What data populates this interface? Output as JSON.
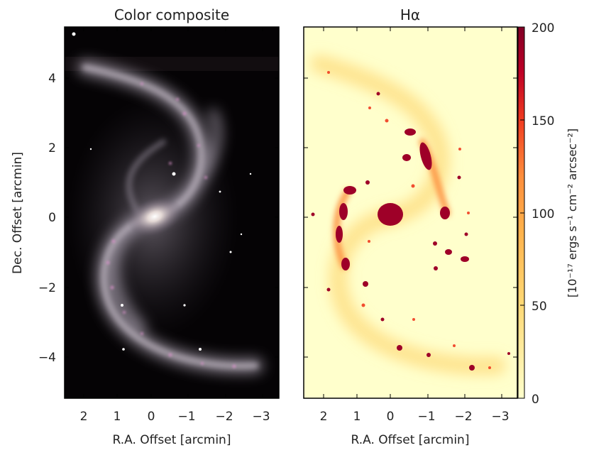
{
  "panels": {
    "left_title": "Color composite",
    "right_title": "Hα"
  },
  "axes": {
    "ylabel": "Dec. Offset [arcmin]",
    "xlabel": "R.A. Offset [arcmin]",
    "y_ticks": [
      "4",
      "2",
      "0",
      "−2",
      "−4"
    ],
    "x_ticks": [
      "2",
      "1",
      "0",
      "−1",
      "−2",
      "−3"
    ]
  },
  "colorbar": {
    "label": "[10⁻¹⁷ ergs s⁻¹ cm⁻² arcsec⁻²]",
    "ticks": [
      "200",
      "150",
      "100",
      "50",
      "0"
    ],
    "colors": [
      "#ffffcc",
      "#feb24c",
      "#f03b20",
      "#bd0026",
      "#800026"
    ]
  },
  "chart_data": {
    "type": "image",
    "panels": [
      "Color composite",
      "Hα"
    ],
    "x_range_arcmin": [
      2.5,
      -3.6
    ],
    "y_range_arcmin": [
      -5.2,
      5.4
    ],
    "colorbar_range": [
      0,
      200
    ]
  }
}
